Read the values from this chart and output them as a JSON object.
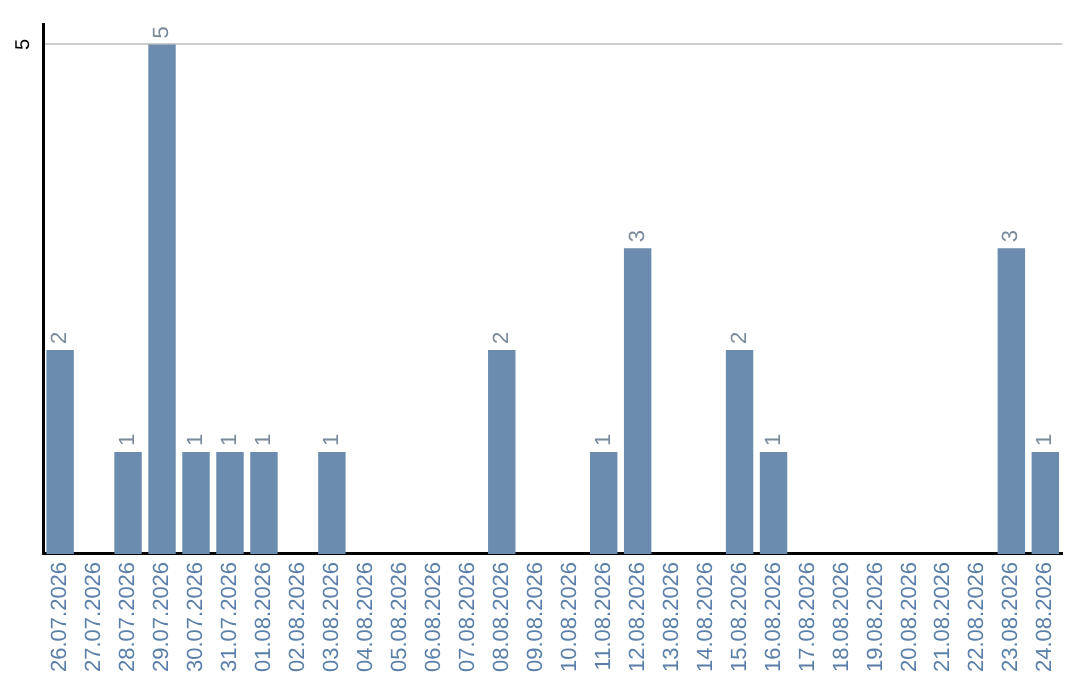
{
  "chart_data": {
    "type": "bar",
    "categories": [
      "26.07.2026",
      "27.07.2026",
      "28.07.2026",
      "29.07.2026",
      "30.07.2026",
      "31.07.2026",
      "01.08.2026",
      "02.08.2026",
      "03.08.2026",
      "04.08.2026",
      "05.08.2026",
      "06.08.2026",
      "07.08.2026",
      "08.08.2026",
      "09.08.2026",
      "10.08.2026",
      "11.08.2026",
      "12.08.2026",
      "13.08.2026",
      "14.08.2026",
      "15.08.2026",
      "16.08.2026",
      "17.08.2026",
      "18.08.2026",
      "19.08.2026",
      "20.08.2026",
      "21.08.2026",
      "22.08.2026",
      "23.08.2026",
      "24.08.2026"
    ],
    "values": [
      2,
      0,
      1,
      5,
      1,
      1,
      1,
      0,
      1,
      0,
      0,
      0,
      0,
      2,
      0,
      0,
      1,
      3,
      0,
      0,
      2,
      1,
      0,
      0,
      0,
      0,
      0,
      0,
      3,
      1
    ],
    "value_labels": [
      "2",
      null,
      "1",
      "5",
      "1",
      "1",
      "1",
      null,
      "1",
      null,
      null,
      null,
      null,
      "2",
      null,
      null,
      "1",
      "3",
      null,
      null,
      "2",
      "1",
      null,
      null,
      null,
      null,
      null,
      null,
      "3",
      "1"
    ],
    "color": "#6b8cae",
    "ylim": [
      0,
      5.2
    ],
    "yticks": [
      5
    ],
    "grid": "y",
    "legend": false
  }
}
